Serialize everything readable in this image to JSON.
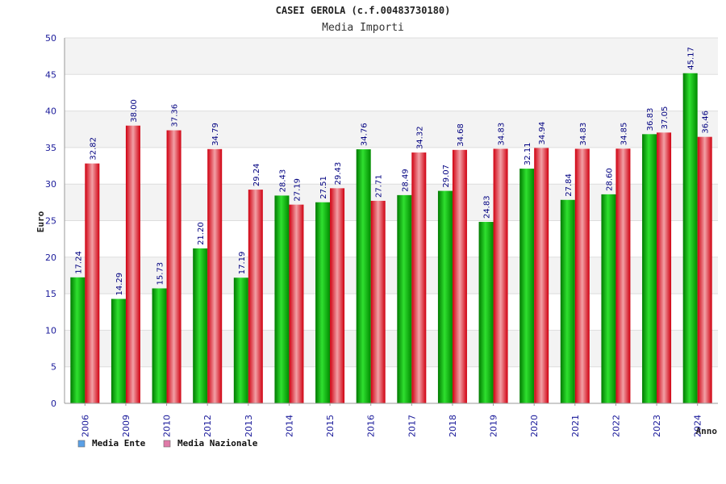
{
  "chart_data": {
    "type": "bar",
    "title": "CASEI GEROLA (c.f.00483730180)",
    "subtitle": "Media Importi",
    "xlabel": "Anno",
    "ylabel": "Euro",
    "ylim": [
      0,
      50
    ],
    "yticks": [
      "0",
      "5",
      "10",
      "15",
      "20",
      "25",
      "30",
      "35",
      "40",
      "45",
      "50"
    ],
    "grid": true,
    "legend_position": "bottom-left",
    "categories": [
      "2006",
      "2009",
      "2010",
      "2012",
      "2013",
      "2014",
      "2015",
      "2016",
      "2017",
      "2018",
      "2019",
      "2020",
      "2021",
      "2022",
      "2023",
      "2024"
    ],
    "series": [
      {
        "name": "Media Ente",
        "color": "#00b000",
        "legend_color": "#5aa0e6",
        "values": [
          17.24,
          14.29,
          15.73,
          21.2,
          17.19,
          28.43,
          27.51,
          34.76,
          28.49,
          29.07,
          24.83,
          32.11,
          27.84,
          28.6,
          36.83,
          45.17
        ],
        "labels": [
          "17.24",
          "14.29",
          "15.73",
          "21.20",
          "17.19",
          "28.43",
          "27.51",
          "34.76",
          "28.49",
          "29.07",
          "24.83",
          "32.11",
          "27.84",
          "28.60",
          "36.83",
          "45.17"
        ]
      },
      {
        "name": "Media Nazionale",
        "color": "#e8202a",
        "legend_color": "#e07aa8",
        "values": [
          32.82,
          38.0,
          37.36,
          34.79,
          29.24,
          27.19,
          29.43,
          27.71,
          34.32,
          34.68,
          34.83,
          34.94,
          34.83,
          34.85,
          37.05,
          36.46
        ],
        "labels": [
          "32.82",
          "38.00",
          "37.36",
          "34.79",
          "29.24",
          "27.19",
          "29.43",
          "27.71",
          "34.32",
          "34.68",
          "34.83",
          "34.94",
          "34.83",
          "34.85",
          "37.05",
          "36.46"
        ]
      }
    ]
  }
}
